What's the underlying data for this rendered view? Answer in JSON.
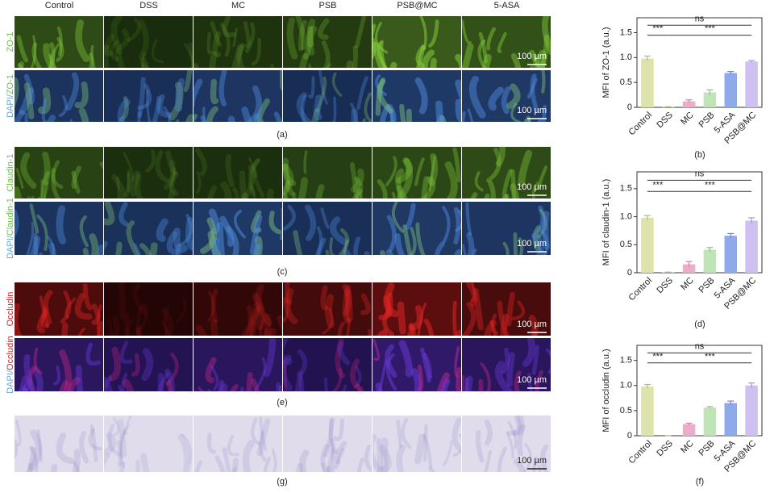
{
  "figure": {
    "columns": [
      "Control",
      "DSS",
      "MC",
      "PSB",
      "PSB@MC",
      "5-ASA"
    ],
    "rows": [
      {
        "label_parts": [
          "ZO-1"
        ]
      },
      {
        "label_parts": [
          "DAPI/",
          "ZO-1"
        ]
      },
      {
        "label_parts": [
          "Claudin-1"
        ]
      },
      {
        "label_parts": [
          "DAPI/",
          "Claudin-1"
        ]
      },
      {
        "label_parts": [
          "Occludin"
        ]
      },
      {
        "label_parts": [
          "DAPI/",
          "Occludin"
        ]
      },
      {
        "label_parts": []
      }
    ],
    "scale_bar": "100 µm",
    "panel_labels": [
      "(a)",
      "(c)",
      "(e)",
      "(g)"
    ]
  },
  "chart_data": [
    {
      "type": "bar",
      "panel_label": "(b)",
      "y_label": "MFI of ZO-1 (a.u.)",
      "categories": [
        "Control",
        "DSS",
        "MC",
        "PSB",
        "5-ASA",
        "PSB@MC"
      ],
      "values": [
        0.98,
        0.01,
        0.12,
        0.3,
        0.69,
        0.92
      ],
      "errors": [
        0.05,
        0.0,
        0.03,
        0.05,
        0.03,
        0.02
      ],
      "colors": [
        "#dde3ab",
        "#cfd8a0",
        "#eeaccb",
        "#bfe4b5",
        "#8eaaea",
        "#cfc0f2"
      ],
      "ylim": [
        0,
        1.8
      ],
      "yticks": [
        0,
        0.5,
        {
          "value": 1,
          "label": "1.0"
        },
        1.5
      ],
      "annotations": [
        "***",
        "***",
        "ns"
      ]
    },
    {
      "type": "bar",
      "panel_label": "(d)",
      "y_label": "MFI of claudin-1 (a.u.)",
      "categories": [
        "Control",
        "DSS",
        "MC",
        "PSB",
        "5-ASA",
        "PSB@MC"
      ],
      "values": [
        0.98,
        0.01,
        0.15,
        0.41,
        0.66,
        0.93
      ],
      "errors": [
        0.04,
        0.0,
        0.05,
        0.04,
        0.04,
        0.05
      ],
      "colors": [
        "#dde3ab",
        "#cfd8a0",
        "#eeaccb",
        "#bfe4b5",
        "#8eaaea",
        "#cfc0f2"
      ],
      "ylim": [
        0,
        1.8
      ],
      "yticks": [
        0,
        0.5,
        {
          "value": 1,
          "label": "1.0"
        },
        1.5
      ],
      "annotations": [
        "***",
        "***",
        "ns"
      ]
    },
    {
      "type": "bar",
      "panel_label": "(f)",
      "y_label": "MFI of occludin (a.u.)",
      "categories": [
        "Control",
        "DSS",
        "MC",
        "PSB",
        "5-ASA",
        "PSB@MC"
      ],
      "values": [
        0.98,
        0.0,
        0.23,
        0.56,
        0.65,
        1.0
      ],
      "errors": [
        0.04,
        0.0,
        0.02,
        0.02,
        0.04,
        0.05
      ],
      "colors": [
        "#dde3ab",
        "#cfd8a0",
        "#eeaccb",
        "#bfe4b5",
        "#8eaaea",
        "#cfc0f2"
      ],
      "ylim": [
        0,
        1.8
      ],
      "yticks": [
        0,
        0.5,
        {
          "value": 1,
          "label": "1.0"
        },
        1.5
      ],
      "annotations": [
        "***",
        "***",
        "ns"
      ]
    }
  ]
}
